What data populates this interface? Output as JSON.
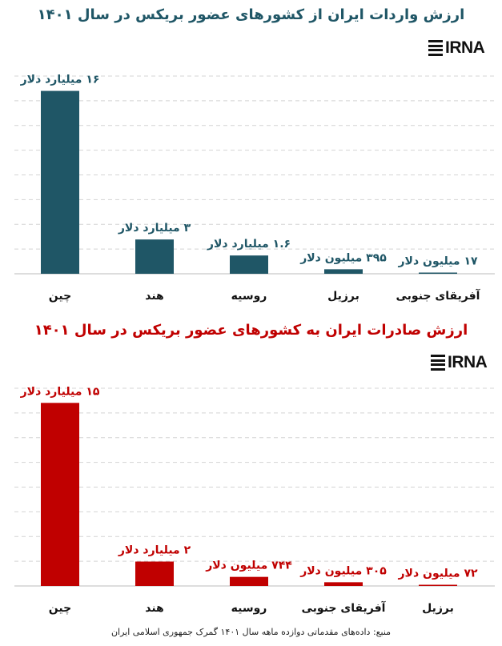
{
  "charts": [
    {
      "title": "ارزش واردات ایران از کشورهای عضور بریکس در سال ۱۴۰۱",
      "logo_text": "IRNA",
      "color": "#1f5666",
      "label_color": "#1f5666",
      "title_color": "#1f5666"
    },
    {
      "title": "ارزش صادرات ایران به کشورهای عضور بریکس در سال ۱۴۰۱",
      "logo_text": "IRNA",
      "color": "#c00000",
      "label_color": "#c00000",
      "title_color": "#c00000"
    }
  ],
  "chart_data": [
    {
      "type": "bar",
      "title": "ارزش واردات ایران از کشورهای عضور بریکس در سال ۱۴۰۱",
      "categories": [
        "چین",
        "هند",
        "روسیه",
        "برزیل",
        "آفریقای جنوبی"
      ],
      "values": [
        16,
        3,
        1.6,
        0.395,
        0.017
      ],
      "unit": "billion USD",
      "data_labels": [
        "۱۶ میلیارد دلار",
        "۳ میلیارد دلار",
        "۱.۶ میلیارد دلار",
        "۳۹۵ میلیون دلار",
        "۱۷ میلیون دلار"
      ],
      "ylim": [
        0,
        17.3
      ],
      "grid": true,
      "legend": "none"
    },
    {
      "type": "bar",
      "title": "ارزش صادرات ایران به کشورهای عضور بریکس در سال ۱۴۰۱",
      "categories": [
        "چین",
        "هند",
        "روسیه",
        "آفریقای جنوبی",
        "برزیل"
      ],
      "values": [
        15,
        2,
        0.744,
        0.305,
        0.072
      ],
      "unit": "billion USD",
      "data_labels": [
        "۱۵ میلیارد دلار",
        "۲ میلیارد دلار",
        "۷۴۴ میلیون دلار",
        "۳۰۵ میلیون دلار",
        "۷۲ میلیون دلار"
      ],
      "ylim": [
        0,
        16.2
      ],
      "grid": true,
      "legend": "none"
    }
  ],
  "footer": "منبع: داده‌های مقدماتی دوازده ماهه سال ۱۴۰۱ گمرک جمهوری اسلامی ایران"
}
